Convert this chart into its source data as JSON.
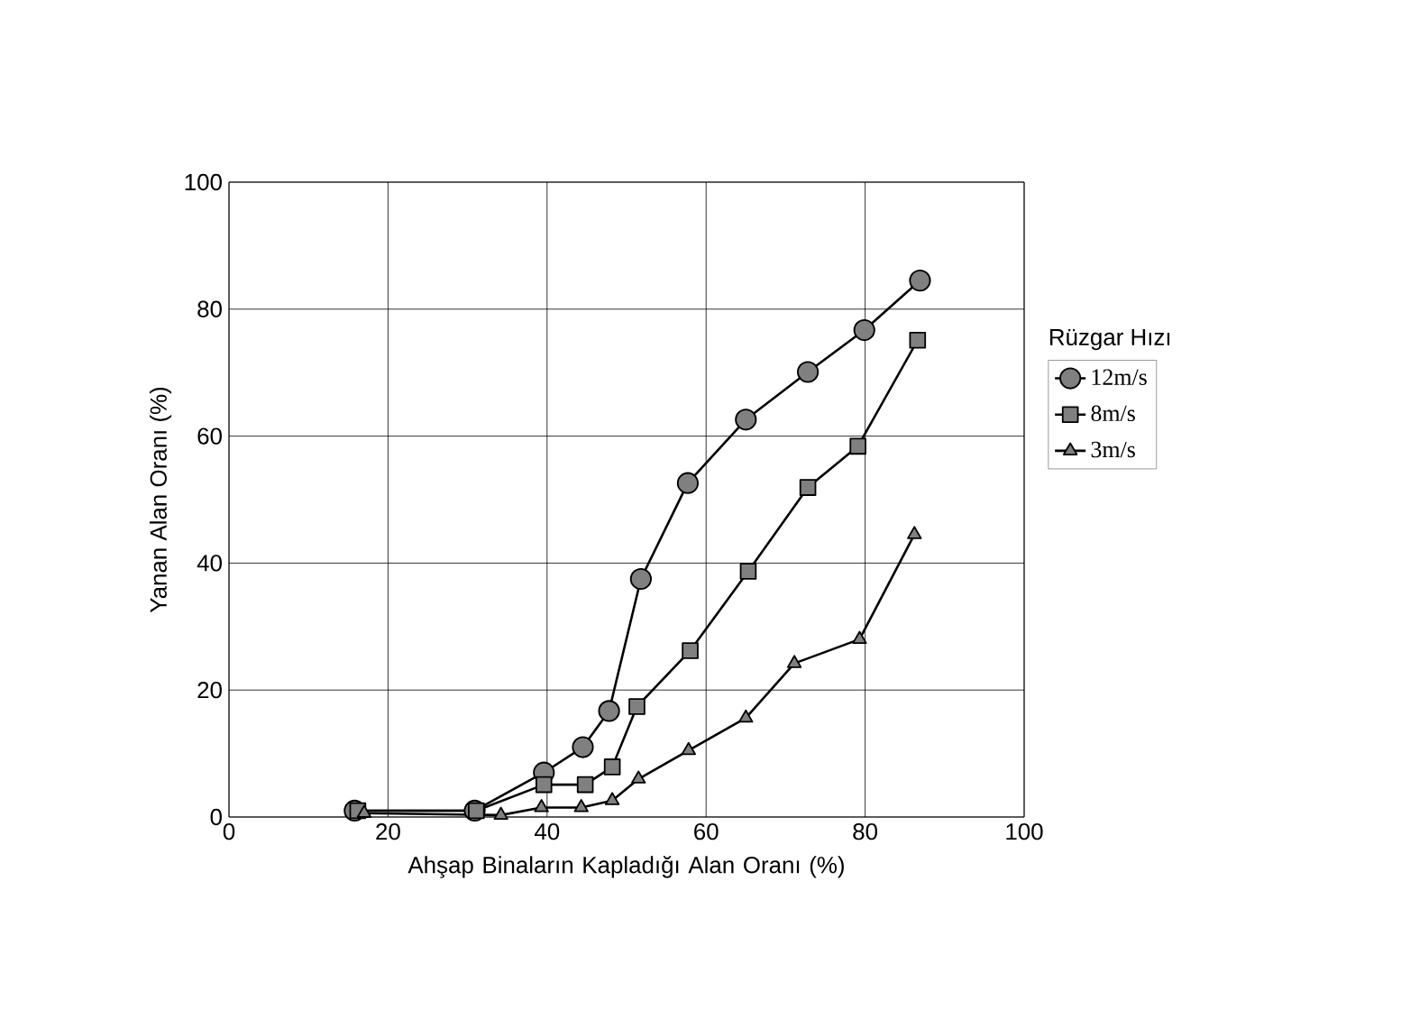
{
  "chart_data": {
    "type": "line",
    "xlabel": "Ahşap Binaların Kapladığı Alan Oranı (%)",
    "ylabel": "Yanan Alan Oranı (%)",
    "legend_title": "Rüzgar Hızı",
    "xlim": [
      0,
      100
    ],
    "xticks": [
      0,
      20,
      40,
      60,
      80,
      100
    ],
    "ylim": [
      0,
      100
    ],
    "yticks": [
      0,
      20,
      40,
      60,
      80,
      100
    ],
    "grid": true,
    "legend": "right",
    "series": [
      {
        "name": "12m/s",
        "color": "#808080",
        "marker": "circle",
        "x": [
          15.8,
          30.9,
          39.6,
          44.5,
          47.8,
          51.8,
          57.7,
          65.0,
          72.8,
          79.9,
          86.9
        ],
        "values": [
          1.0,
          1.0,
          7.0,
          11.0,
          16.7,
          37.5,
          52.6,
          62.6,
          70.1,
          76.7,
          84.5
        ]
      },
      {
        "name": "8m/s",
        "color": "#808080",
        "marker": "square",
        "x": [
          16.2,
          31.1,
          39.6,
          44.8,
          48.2,
          51.3,
          58.0,
          65.3,
          72.8,
          79.1,
          86.6
        ],
        "values": [
          1.0,
          1.0,
          5.1,
          5.1,
          7.9,
          17.4,
          26.2,
          38.7,
          51.9,
          58.4,
          75.1
        ]
      },
      {
        "name": "3m/s",
        "color": "#808080",
        "marker": "triangle",
        "x": [
          17.0,
          34.2,
          39.3,
          44.3,
          48.2,
          51.5,
          57.8,
          65.0,
          71.1,
          79.3,
          86.2
        ],
        "values": [
          0.6,
          0.3,
          1.5,
          1.5,
          2.6,
          6.0,
          10.5,
          15.6,
          24.2,
          28.0,
          44.5
        ]
      }
    ]
  }
}
